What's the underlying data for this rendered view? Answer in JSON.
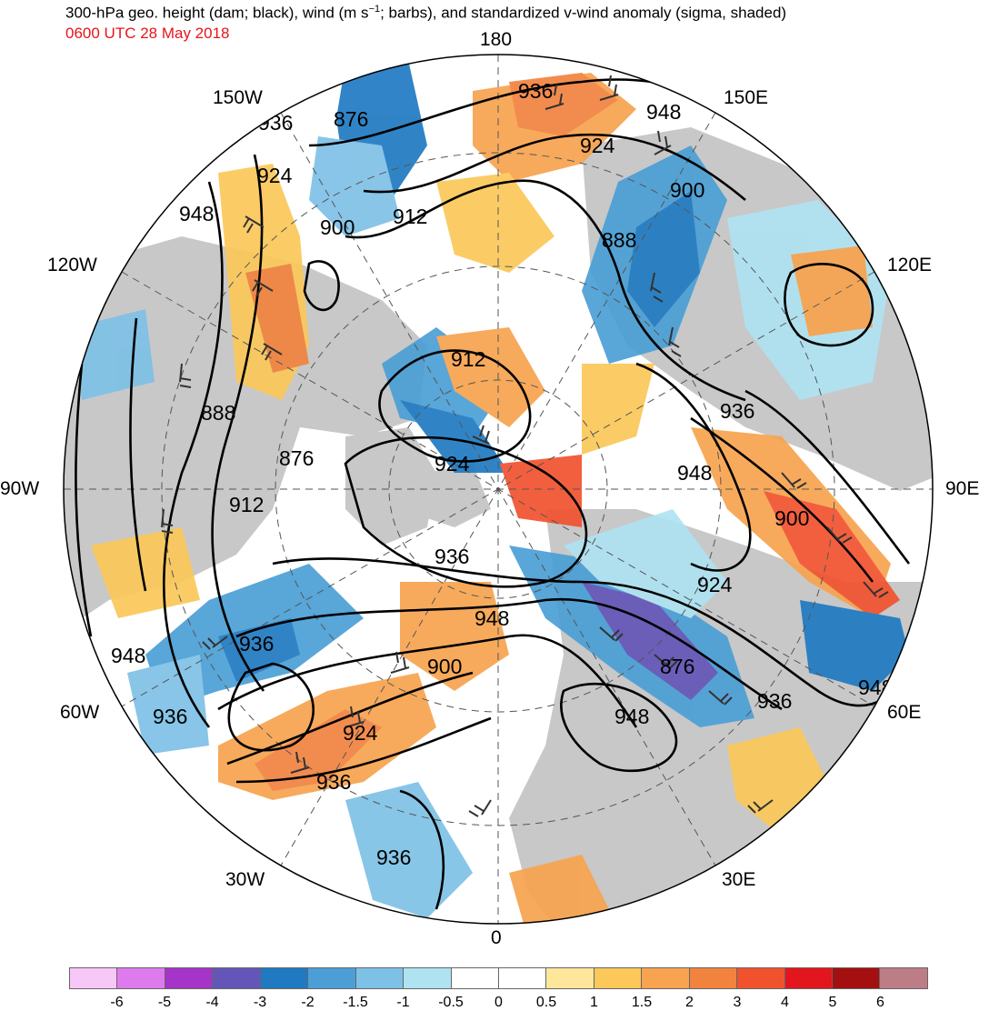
{
  "header": {
    "title": "300-hPa geo. height (dam; black), wind (m s",
    "title_sup": "−1",
    "title_rest": "; barbs), and standardized v-wind anomaly (sigma, shaded)",
    "date": "0600 UTC 28 May 2018",
    "date_color": "#e8141a"
  },
  "map": {
    "projection": "north-polar-stereographic",
    "longitude_labels": {
      "top": "180",
      "bottom": "0",
      "left": "90W",
      "right": "90E",
      "nw_150": "150W",
      "ne_150": "150E",
      "w_120": "120W",
      "e_120": "120E",
      "w_60": "60W",
      "e_60": "60E",
      "sw_30": "30W",
      "se_30": "30E"
    },
    "contour_labels": [
      "948",
      "936",
      "924",
      "900",
      "912",
      "888",
      "876",
      "936",
      "948",
      "924",
      "900",
      "912",
      "888",
      "876",
      "924",
      "936",
      "948",
      "900",
      "912",
      "936",
      "924",
      "948",
      "936",
      "900",
      "876"
    ],
    "land_color": "#c8c8c8",
    "contour_color": "#000000",
    "barb_color": "#333333"
  },
  "colorbar": {
    "colors": [
      "#f7c8f7",
      "#dd7bee",
      "#a534c8",
      "#6356b8",
      "#1f7ac2",
      "#4b9fd6",
      "#7ec1e6",
      "#afe3f2",
      "#ffffff",
      "#ffffff",
      "#fee79a",
      "#fbc859",
      "#f7a34f",
      "#f1833f",
      "#f1522e",
      "#e3151d",
      "#a3100f",
      "#bd7d86"
    ],
    "ticks": [
      "-6",
      "-5",
      "-4",
      "-3",
      "-2",
      "-1.5",
      "-1",
      "-0.5",
      "0",
      "0.5",
      "1",
      "1.5",
      "2",
      "3",
      "4",
      "5",
      "6"
    ]
  }
}
